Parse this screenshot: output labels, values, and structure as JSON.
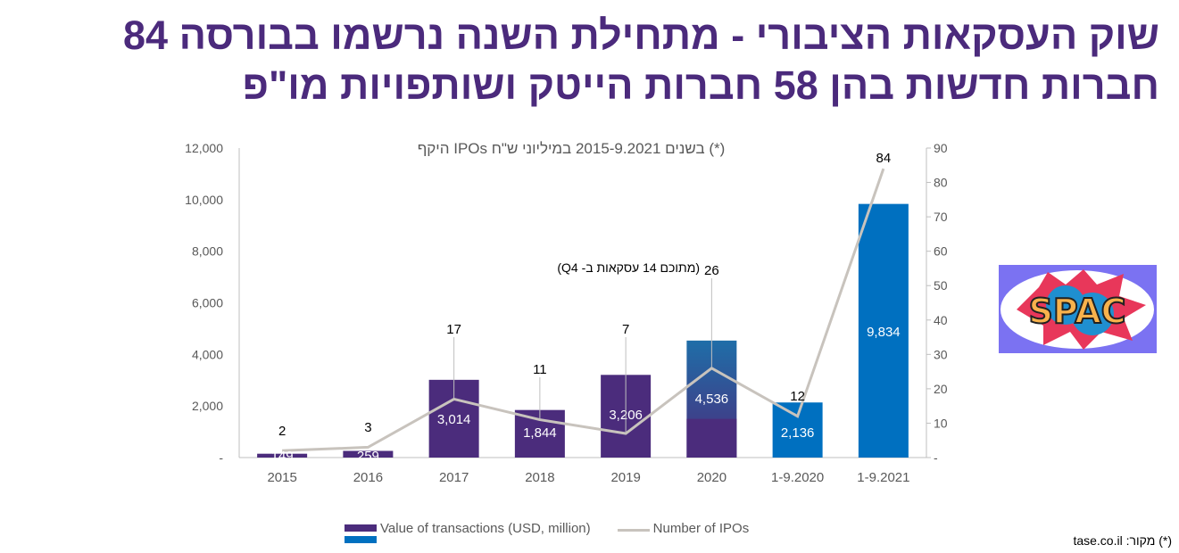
{
  "title_lines": [
    "שוק העסקאות הציבורי - מתחילת השנה נרשמו בבורסה 84",
    "חברות חדשות בהן 58 חברות הייטק ושותפויות מו\"פ"
  ],
  "chart_data": {
    "type": "bar+line",
    "title": "היקף IPOs בשנים 2015-9.2021 במיליוני ש\"ח (*)",
    "categories": [
      "2015",
      "2016",
      "2017",
      "2018",
      "2019",
      "2020",
      "1-9.2020",
      "1-9.2021"
    ],
    "series": [
      {
        "name": "Value of transactions (USD, million)",
        "type": "bar",
        "axis": "left",
        "values": [
          149,
          259,
          3014,
          1844,
          3206,
          4536,
          2136,
          9834
        ],
        "value_labels": [
          "149",
          "259",
          "3,014",
          "1,844",
          "3,206",
          "4,536",
          "2,136",
          "9,834"
        ],
        "colors": [
          "#4b2c7c",
          "#4b2c7c",
          "#4b2c7c",
          "#4b2c7c",
          "#4b2c7c",
          "#4b2c7c",
          "#0070c0",
          "#0070c0"
        ]
      },
      {
        "name": "Number of IPOs",
        "type": "line",
        "axis": "right",
        "values": [
          2,
          3,
          17,
          11,
          7,
          26,
          12,
          84
        ],
        "color": "#c8c3bd"
      }
    ],
    "left_axis": {
      "range": [
        0,
        12000
      ],
      "ticks": [
        "-",
        "2,000",
        "4,000",
        "6,000",
        "8,000",
        "10,000",
        "12,000"
      ]
    },
    "right_axis": {
      "range": [
        0,
        90
      ],
      "ticks": [
        "-",
        "10",
        "20",
        "30",
        "40",
        "50",
        "60",
        "70",
        "80",
        "90"
      ]
    },
    "annotation": "(מתוכם 14 עסקאות ב- Q4)",
    "legend_placement": "bottom"
  },
  "logo_text": "SPAC",
  "source": "(*) מקור: tase.co.il"
}
